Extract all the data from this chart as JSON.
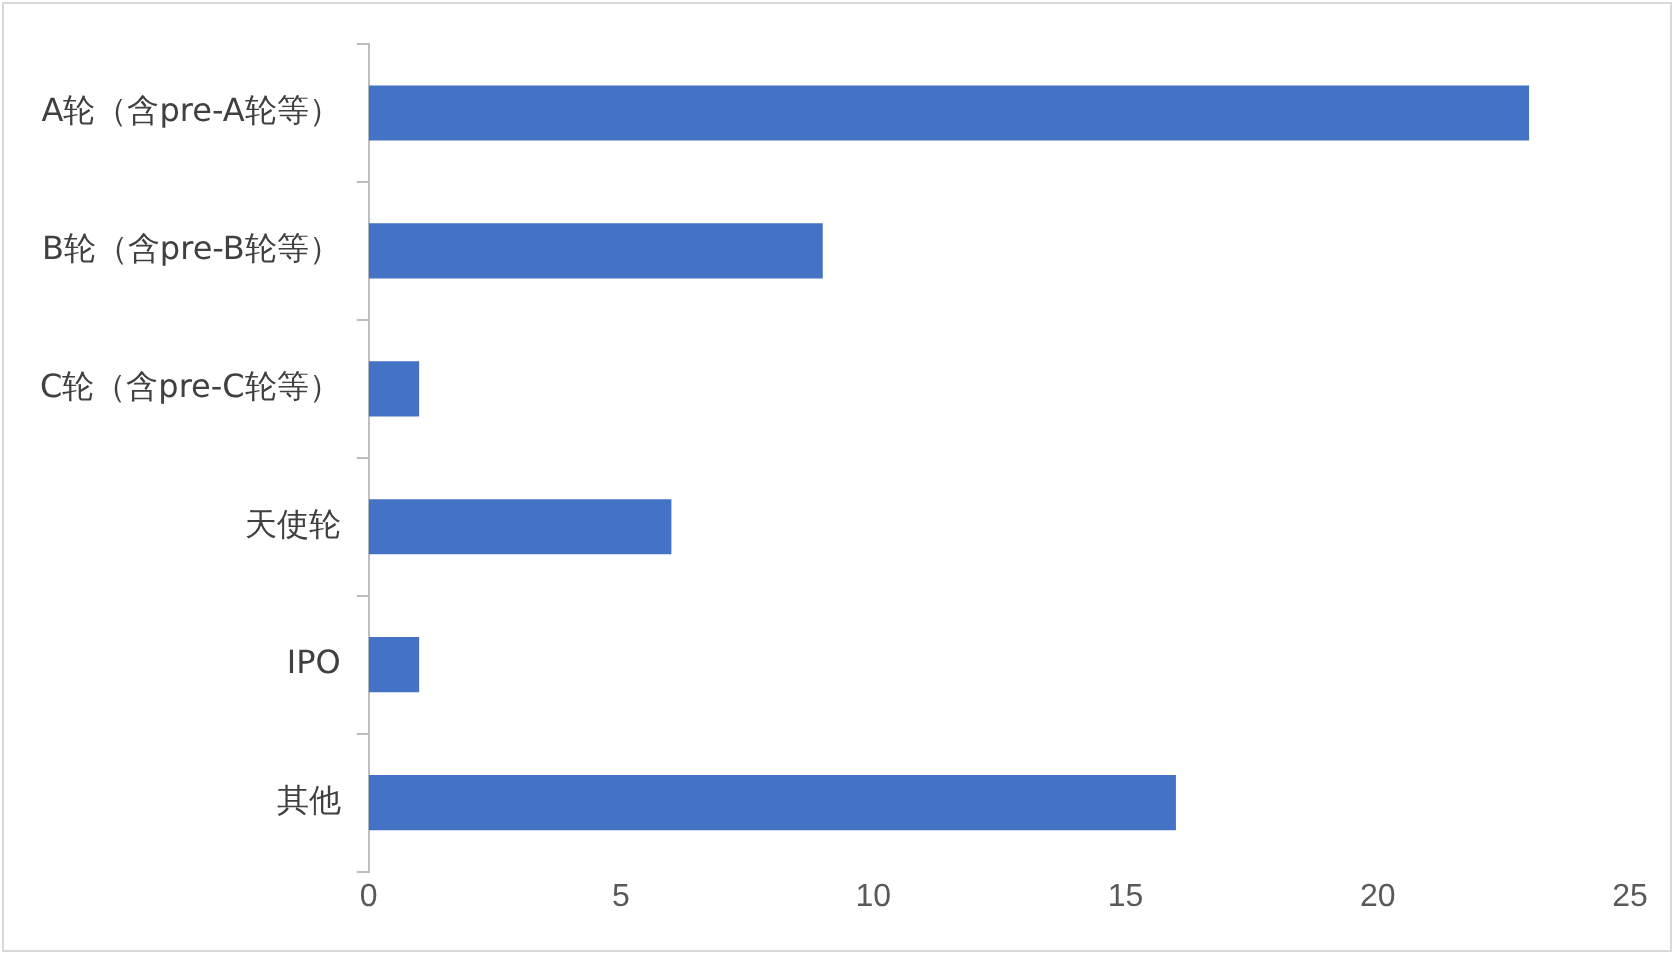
{
  "chart_data": {
    "type": "bar",
    "orientation": "horizontal",
    "categories": [
      "A轮（含pre-A轮等）",
      "B轮（含pre-B轮等）",
      "C轮（含pre-C轮等）",
      "天使轮",
      "IPO",
      "其他"
    ],
    "values": [
      23,
      9,
      1,
      6,
      1,
      16
    ],
    "color": "#4472c4",
    "xlim": [
      0,
      25
    ],
    "xticks": [
      0,
      5,
      10,
      15,
      20,
      25
    ],
    "grid": false,
    "legend": false
  }
}
